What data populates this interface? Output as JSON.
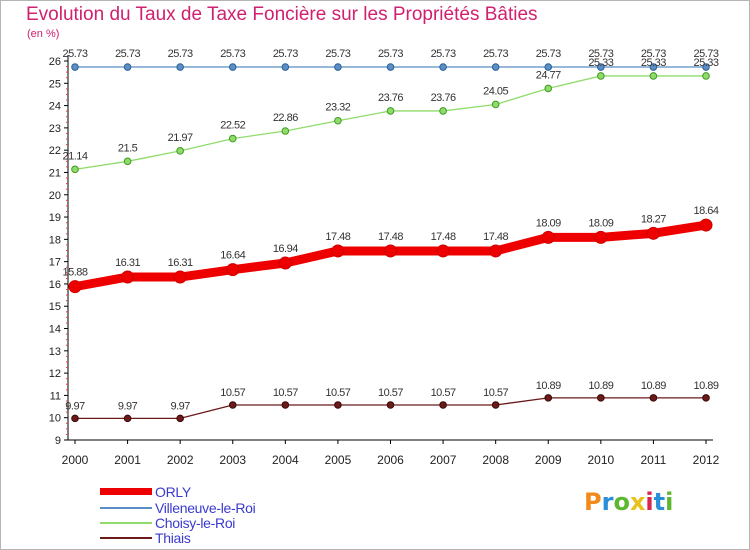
{
  "title": "Evolution du Taux de Taxe Foncière sur les Propriétés Bâties",
  "unit_label": "(en %)",
  "logo_text": "Proxiti",
  "logo_colors": [
    "#f08a1c",
    "#2a8fd8",
    "#5cb82e",
    "#e8c21a",
    "#d8264e",
    "#2a8fd8",
    "#5cb82e"
  ],
  "chart_data": {
    "type": "line",
    "x": [
      "2000",
      "2001",
      "2002",
      "2003",
      "2004",
      "2005",
      "2006",
      "2007",
      "2008",
      "2009",
      "2010",
      "2011",
      "2012"
    ],
    "ylim": [
      9,
      26
    ],
    "yticks": [
      "9",
      "10",
      "11",
      "12",
      "13",
      "14",
      "15",
      "16",
      "17",
      "18",
      "19",
      "20",
      "21",
      "22",
      "23",
      "24",
      "25",
      "26"
    ],
    "grid": false,
    "legend_position": "bottom-left",
    "series": [
      {
        "name": "ORLY",
        "color": "#ee0000",
        "values": [
          15.88,
          16.31,
          16.31,
          16.64,
          16.94,
          17.48,
          17.48,
          17.48,
          17.48,
          18.09,
          18.09,
          18.27,
          18.64
        ],
        "labels": [
          "15.88",
          "16.31",
          "16.31",
          "16.64",
          "16.94",
          "17.48",
          "17.48",
          "17.48",
          "17.48",
          "18.09",
          "18.09",
          "18.27",
          "18.64"
        ]
      },
      {
        "name": "Villeneuve-le-Roi",
        "color": "#5b8ec4",
        "values": [
          25.73,
          25.73,
          25.73,
          25.73,
          25.73,
          25.73,
          25.73,
          25.73,
          25.73,
          25.73,
          25.73,
          25.73,
          25.73
        ],
        "labels": [
          "25.73",
          "25.73",
          "25.73",
          "25.73",
          "25.73",
          "25.73",
          "25.73",
          "25.73",
          "25.73",
          "25.73",
          "25.73",
          "25.73",
          "25.73"
        ]
      },
      {
        "name": "Choisy-le-Roi",
        "color": "#8fdc6a",
        "values": [
          21.14,
          21.5,
          21.97,
          22.52,
          22.86,
          23.32,
          23.76,
          23.76,
          24.05,
          24.77,
          25.33,
          25.33,
          25.33
        ],
        "labels": [
          "21.14",
          "21.5",
          "21.97",
          "22.52",
          "22.86",
          "23.32",
          "23.76",
          "23.76",
          "24.05",
          "24.77",
          "25.33",
          "25.33",
          "25.33"
        ]
      },
      {
        "name": "Thiais",
        "color": "#6b1a1a",
        "values": [
          9.97,
          9.97,
          9.97,
          10.57,
          10.57,
          10.57,
          10.57,
          10.57,
          10.57,
          10.89,
          10.89,
          10.89,
          10.89
        ],
        "labels": [
          "9.97",
          "9.97",
          "9.97",
          "10.57",
          "10.57",
          "10.57",
          "10.57",
          "10.57",
          "10.57",
          "10.89",
          "10.89",
          "10.89",
          "10.89"
        ]
      }
    ]
  }
}
